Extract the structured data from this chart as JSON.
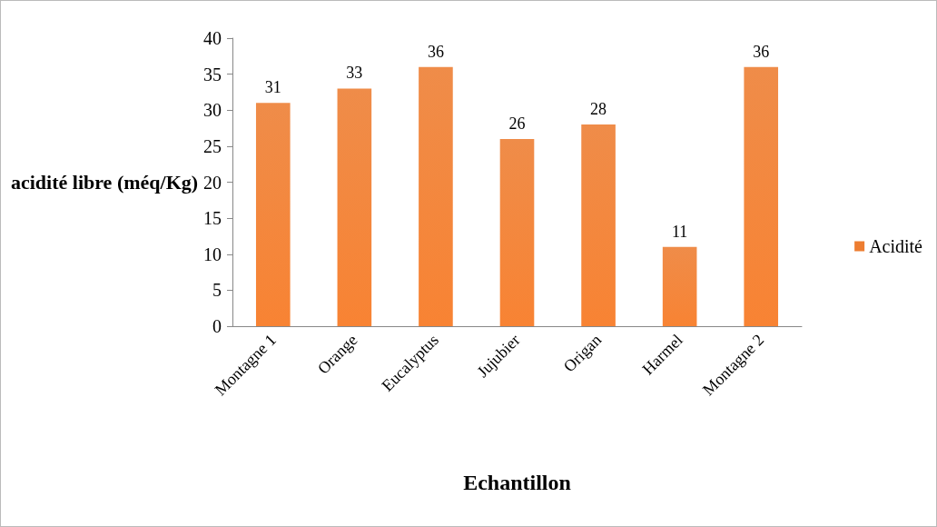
{
  "chart_data": {
    "type": "bar",
    "categories": [
      "Montagne 1",
      "Orange",
      "Eucalyptus",
      "Jujubier",
      "Origan",
      "Harmel",
      "Montagne 2"
    ],
    "series": [
      {
        "name": "Acidité",
        "color": "#ed7d31",
        "values": [
          31,
          33,
          36,
          26,
          28,
          11,
          36
        ]
      }
    ],
    "xlabel": "Echantillon",
    "ylabel": "acidité libre (méq/Kg)",
    "ylim": [
      0,
      40
    ],
    "yticks": [
      0,
      5,
      10,
      15,
      20,
      25,
      30,
      35,
      40
    ],
    "grid": false,
    "legend": "right",
    "data_labels": true
  }
}
